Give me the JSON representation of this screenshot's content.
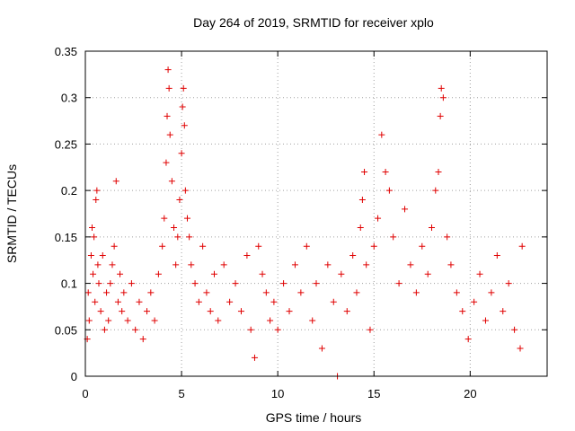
{
  "chart_data": {
    "type": "scatter",
    "title": "Day 264 of 2019, SRMTID for receiver xplo",
    "xlabel": "GPS time / hours",
    "ylabel": "SRMTID / TECUs",
    "xlim": [
      0,
      24
    ],
    "ylim": [
      0,
      0.35
    ],
    "x_ticks": [
      0,
      5,
      10,
      15,
      20
    ],
    "x_tick_labels": [
      "0",
      "5",
      "10",
      "15",
      "20"
    ],
    "y_ticks": [
      0,
      0.05,
      0.1,
      0.15,
      0.2,
      0.25,
      0.3,
      0.35
    ],
    "y_tick_labels": [
      "0",
      "0.05",
      "0.1",
      "0.15",
      "0.2",
      "0.25",
      "0.3",
      "0.35"
    ],
    "grid": true,
    "marker": "+",
    "color": "#e00000",
    "series": [
      {
        "name": "SRMTID",
        "points": [
          [
            0.1,
            0.04
          ],
          [
            0.15,
            0.09
          ],
          [
            0.2,
            0.06
          ],
          [
            0.3,
            0.13
          ],
          [
            0.35,
            0.16
          ],
          [
            0.4,
            0.11
          ],
          [
            0.45,
            0.15
          ],
          [
            0.5,
            0.08
          ],
          [
            0.55,
            0.19
          ],
          [
            0.6,
            0.2
          ],
          [
            0.65,
            0.12
          ],
          [
            0.7,
            0.1
          ],
          [
            0.8,
            0.07
          ],
          [
            0.9,
            0.13
          ],
          [
            1.0,
            0.05
          ],
          [
            1.1,
            0.09
          ],
          [
            1.2,
            0.06
          ],
          [
            1.3,
            0.1
          ],
          [
            1.4,
            0.12
          ],
          [
            1.5,
            0.14
          ],
          [
            1.6,
            0.21
          ],
          [
            1.7,
            0.08
          ],
          [
            1.8,
            0.11
          ],
          [
            1.9,
            0.07
          ],
          [
            2.0,
            0.09
          ],
          [
            2.2,
            0.06
          ],
          [
            2.4,
            0.1
          ],
          [
            2.6,
            0.05
          ],
          [
            2.8,
            0.08
          ],
          [
            3.0,
            0.04
          ],
          [
            3.2,
            0.07
          ],
          [
            3.4,
            0.09
          ],
          [
            3.6,
            0.06
          ],
          [
            3.8,
            0.11
          ],
          [
            4.0,
            0.14
          ],
          [
            4.1,
            0.17
          ],
          [
            4.2,
            0.23
          ],
          [
            4.25,
            0.28
          ],
          [
            4.3,
            0.33
          ],
          [
            4.35,
            0.31
          ],
          [
            4.4,
            0.26
          ],
          [
            4.5,
            0.21
          ],
          [
            4.6,
            0.16
          ],
          [
            4.7,
            0.12
          ],
          [
            4.8,
            0.15
          ],
          [
            4.9,
            0.19
          ],
          [
            5.0,
            0.24
          ],
          [
            5.05,
            0.29
          ],
          [
            5.1,
            0.31
          ],
          [
            5.15,
            0.27
          ],
          [
            5.2,
            0.2
          ],
          [
            5.3,
            0.17
          ],
          [
            5.4,
            0.15
          ],
          [
            5.5,
            0.12
          ],
          [
            5.7,
            0.1
          ],
          [
            5.9,
            0.08
          ],
          [
            6.1,
            0.14
          ],
          [
            6.3,
            0.09
          ],
          [
            6.5,
            0.07
          ],
          [
            6.7,
            0.11
          ],
          [
            6.9,
            0.06
          ],
          [
            7.2,
            0.12
          ],
          [
            7.5,
            0.08
          ],
          [
            7.8,
            0.1
          ],
          [
            8.1,
            0.07
          ],
          [
            8.4,
            0.13
          ],
          [
            8.6,
            0.05
          ],
          [
            8.8,
            0.02
          ],
          [
            9.0,
            0.14
          ],
          [
            9.2,
            0.11
          ],
          [
            9.4,
            0.09
          ],
          [
            9.6,
            0.06
          ],
          [
            9.8,
            0.08
          ],
          [
            10.0,
            0.05
          ],
          [
            10.3,
            0.1
          ],
          [
            10.6,
            0.07
          ],
          [
            10.9,
            0.12
          ],
          [
            11.2,
            0.09
          ],
          [
            11.5,
            0.14
          ],
          [
            11.8,
            0.06
          ],
          [
            12.0,
            0.1
          ],
          [
            12.3,
            0.03
          ],
          [
            12.6,
            0.12
          ],
          [
            12.9,
            0.08
          ],
          [
            13.1,
            0.0
          ],
          [
            13.3,
            0.11
          ],
          [
            13.6,
            0.07
          ],
          [
            13.9,
            0.13
          ],
          [
            14.1,
            0.09
          ],
          [
            14.3,
            0.16
          ],
          [
            14.4,
            0.19
          ],
          [
            14.5,
            0.22
          ],
          [
            14.6,
            0.12
          ],
          [
            14.8,
            0.05
          ],
          [
            15.0,
            0.14
          ],
          [
            15.2,
            0.17
          ],
          [
            15.4,
            0.26
          ],
          [
            15.6,
            0.22
          ],
          [
            15.8,
            0.2
          ],
          [
            16.0,
            0.15
          ],
          [
            16.3,
            0.1
          ],
          [
            16.6,
            0.18
          ],
          [
            16.9,
            0.12
          ],
          [
            17.2,
            0.09
          ],
          [
            17.5,
            0.14
          ],
          [
            17.8,
            0.11
          ],
          [
            18.0,
            0.16
          ],
          [
            18.2,
            0.2
          ],
          [
            18.35,
            0.22
          ],
          [
            18.45,
            0.28
          ],
          [
            18.5,
            0.31
          ],
          [
            18.6,
            0.3
          ],
          [
            18.8,
            0.15
          ],
          [
            19.0,
            0.12
          ],
          [
            19.3,
            0.09
          ],
          [
            19.6,
            0.07
          ],
          [
            19.9,
            0.04
          ],
          [
            20.2,
            0.08
          ],
          [
            20.5,
            0.11
          ],
          [
            20.8,
            0.06
          ],
          [
            21.1,
            0.09
          ],
          [
            21.4,
            0.13
          ],
          [
            21.7,
            0.07
          ],
          [
            22.0,
            0.1
          ],
          [
            22.3,
            0.05
          ],
          [
            22.6,
            0.03
          ],
          [
            22.7,
            0.14
          ]
        ]
      }
    ]
  }
}
